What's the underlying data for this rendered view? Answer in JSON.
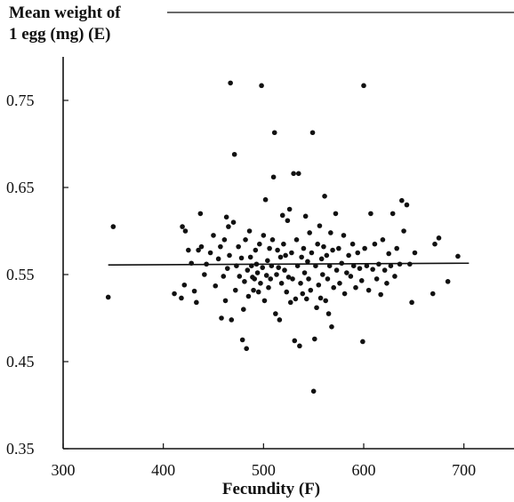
{
  "chart_data": {
    "type": "scatter",
    "title": "",
    "ylabel_line1": "Mean weight of",
    "ylabel_line2": "1 egg (mg) (E)",
    "xlabel": "Fecundity (F)",
    "xlim": [
      300,
      750
    ],
    "ylim": [
      0.35,
      0.8
    ],
    "x_ticks": [
      300,
      400,
      500,
      600,
      700
    ],
    "x_tick_labels": [
      "300",
      "400",
      "500",
      "600",
      "700"
    ],
    "y_ticks": [
      0.35,
      0.45,
      0.55,
      0.65,
      0.75
    ],
    "y_tick_labels": [
      "0.35",
      "0.45",
      "0.55",
      "0.65",
      "0.75"
    ],
    "grid": false,
    "trend_line": {
      "x": [
        345,
        705
      ],
      "y": [
        0.561,
        0.563
      ]
    },
    "points": [
      [
        345,
        0.524
      ],
      [
        350,
        0.605
      ],
      [
        411,
        0.528
      ],
      [
        418,
        0.523
      ],
      [
        421,
        0.538
      ],
      [
        419,
        0.605
      ],
      [
        422,
        0.6
      ],
      [
        425,
        0.578
      ],
      [
        428,
        0.563
      ],
      [
        431,
        0.531
      ],
      [
        433,
        0.518
      ],
      [
        435,
        0.578
      ],
      [
        438,
        0.582
      ],
      [
        437,
        0.62
      ],
      [
        441,
        0.55
      ],
      [
        443,
        0.562
      ],
      [
        447,
        0.575
      ],
      [
        450,
        0.595
      ],
      [
        452,
        0.537
      ],
      [
        455,
        0.568
      ],
      [
        457,
        0.582
      ],
      [
        458,
        0.5
      ],
      [
        460,
        0.548
      ],
      [
        461,
        0.59
      ],
      [
        463,
        0.616
      ],
      [
        462,
        0.52
      ],
      [
        464,
        0.557
      ],
      [
        466,
        0.572
      ],
      [
        465,
        0.605
      ],
      [
        467,
        0.77
      ],
      [
        468,
        0.498
      ],
      [
        470,
        0.61
      ],
      [
        471,
        0.688
      ],
      [
        472,
        0.532
      ],
      [
        473,
        0.56
      ],
      [
        475,
        0.582
      ],
      [
        476,
        0.548
      ],
      [
        478,
        0.569
      ],
      [
        479,
        0.475
      ],
      [
        480,
        0.51
      ],
      [
        481,
        0.542
      ],
      [
        482,
        0.59
      ],
      [
        483,
        0.465
      ],
      [
        484,
        0.555
      ],
      [
        485,
        0.525
      ],
      [
        486,
        0.6
      ],
      [
        487,
        0.57
      ],
      [
        488,
        0.56
      ],
      [
        489,
        0.547
      ],
      [
        490,
        0.532
      ],
      [
        491,
        0.545
      ],
      [
        492,
        0.578
      ],
      [
        493,
        0.562
      ],
      [
        494,
        0.552
      ],
      [
        495,
        0.53
      ],
      [
        496,
        0.585
      ],
      [
        497,
        0.54
      ],
      [
        498,
        0.767
      ],
      [
        499,
        0.558
      ],
      [
        500,
        0.595
      ],
      [
        501,
        0.52
      ],
      [
        502,
        0.636
      ],
      [
        503,
        0.549
      ],
      [
        504,
        0.566
      ],
      [
        505,
        0.535
      ],
      [
        506,
        0.58
      ],
      [
        507,
        0.545
      ],
      [
        508,
        0.56
      ],
      [
        509,
        0.59
      ],
      [
        510,
        0.662
      ],
      [
        511,
        0.713
      ],
      [
        512,
        0.505
      ],
      [
        513,
        0.55
      ],
      [
        514,
        0.578
      ],
      [
        515,
        0.558
      ],
      [
        516,
        0.498
      ],
      [
        517,
        0.57
      ],
      [
        518,
        0.54
      ],
      [
        519,
        0.618
      ],
      [
        520,
        0.585
      ],
      [
        521,
        0.555
      ],
      [
        522,
        0.572
      ],
      [
        523,
        0.53
      ],
      [
        524,
        0.612
      ],
      [
        525,
        0.547
      ],
      [
        526,
        0.625
      ],
      [
        527,
        0.518
      ],
      [
        528,
        0.575
      ],
      [
        529,
        0.545
      ],
      [
        530,
        0.666
      ],
      [
        531,
        0.474
      ],
      [
        532,
        0.522
      ],
      [
        533,
        0.59
      ],
      [
        534,
        0.56
      ],
      [
        535,
        0.666
      ],
      [
        536,
        0.468
      ],
      [
        537,
        0.54
      ],
      [
        538,
        0.57
      ],
      [
        539,
        0.528
      ],
      [
        540,
        0.58
      ],
      [
        541,
        0.552
      ],
      [
        542,
        0.617
      ],
      [
        543,
        0.522
      ],
      [
        544,
        0.565
      ],
      [
        545,
        0.545
      ],
      [
        546,
        0.598
      ],
      [
        547,
        0.532
      ],
      [
        548,
        0.575
      ],
      [
        549,
        0.713
      ],
      [
        550,
        0.416
      ],
      [
        551,
        0.476
      ],
      [
        552,
        0.56
      ],
      [
        553,
        0.512
      ],
      [
        554,
        0.585
      ],
      [
        555,
        0.538
      ],
      [
        556,
        0.606
      ],
      [
        557,
        0.523
      ],
      [
        558,
        0.568
      ],
      [
        559,
        0.55
      ],
      [
        560,
        0.582
      ],
      [
        561,
        0.64
      ],
      [
        562,
        0.52
      ],
      [
        563,
        0.572
      ],
      [
        564,
        0.545
      ],
      [
        565,
        0.505
      ],
      [
        566,
        0.56
      ],
      [
        567,
        0.598
      ],
      [
        568,
        0.49
      ],
      [
        569,
        0.578
      ],
      [
        570,
        0.535
      ],
      [
        572,
        0.62
      ],
      [
        573,
        0.555
      ],
      [
        575,
        0.58
      ],
      [
        576,
        0.54
      ],
      [
        578,
        0.563
      ],
      [
        580,
        0.595
      ],
      [
        581,
        0.528
      ],
      [
        583,
        0.552
      ],
      [
        585,
        0.572
      ],
      [
        587,
        0.548
      ],
      [
        589,
        0.585
      ],
      [
        590,
        0.56
      ],
      [
        592,
        0.535
      ],
      [
        594,
        0.575
      ],
      [
        596,
        0.557
      ],
      [
        598,
        0.543
      ],
      [
        599,
        0.473
      ],
      [
        600,
        0.767
      ],
      [
        601,
        0.58
      ],
      [
        603,
        0.56
      ],
      [
        605,
        0.532
      ],
      [
        607,
        0.62
      ],
      [
        609,
        0.556
      ],
      [
        611,
        0.585
      ],
      [
        613,
        0.545
      ],
      [
        615,
        0.562
      ],
      [
        617,
        0.527
      ],
      [
        619,
        0.59
      ],
      [
        621,
        0.555
      ],
      [
        623,
        0.54
      ],
      [
        625,
        0.574
      ],
      [
        627,
        0.56
      ],
      [
        629,
        0.62
      ],
      [
        631,
        0.548
      ],
      [
        633,
        0.58
      ],
      [
        636,
        0.562
      ],
      [
        638,
        0.635
      ],
      [
        640,
        0.6
      ],
      [
        643,
        0.63
      ],
      [
        646,
        0.562
      ],
      [
        648,
        0.518
      ],
      [
        651,
        0.575
      ],
      [
        669,
        0.528
      ],
      [
        671,
        0.585
      ],
      [
        675,
        0.592
      ],
      [
        684,
        0.542
      ],
      [
        694,
        0.571
      ]
    ]
  }
}
